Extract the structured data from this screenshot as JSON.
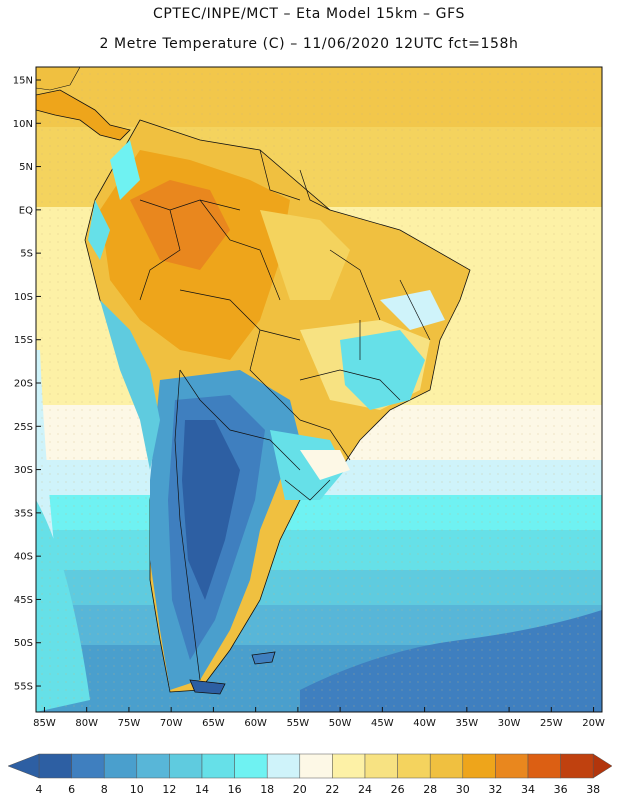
{
  "header": {
    "line1": "CPTEC/INPE/MCT –  Eta Model 15km – GFS",
    "line2": "2 Metre Temperature (C) – 11/06/2020 12UTC fct=158h"
  },
  "axes": {
    "lat_labels": [
      "15N",
      "10N",
      "5N",
      "EQ",
      "5S",
      "10S",
      "15S",
      "20S",
      "25S",
      "30S",
      "35S",
      "40S",
      "45S",
      "50S",
      "55S"
    ],
    "lat_values": [
      15,
      10,
      5,
      0,
      -5,
      -10,
      -15,
      -20,
      -25,
      -30,
      -35,
      -40,
      -45,
      -50,
      -55
    ],
    "lon_labels": [
      "85W",
      "80W",
      "75W",
      "70W",
      "65W",
      "60W",
      "55W",
      "50W",
      "45W",
      "40W",
      "35W",
      "30W",
      "25W",
      "20W"
    ],
    "lon_values": [
      -85,
      -80,
      -75,
      -70,
      -65,
      -60,
      -55,
      -50,
      -45,
      -40,
      -35,
      -30,
      -25,
      -20
    ],
    "lat_range": [
      -58,
      16.5
    ],
    "lon_range": [
      -86,
      -19
    ]
  },
  "colorbar": {
    "labels": [
      "4",
      "6",
      "8",
      "10",
      "12",
      "14",
      "16",
      "18",
      "20",
      "22",
      "24",
      "26",
      "28",
      "30",
      "32",
      "34",
      "36",
      "38"
    ],
    "colors": [
      "#2d5fa3",
      "#3f7fbf",
      "#4a9fcd",
      "#58b6d8",
      "#5fcbdf",
      "#66e0e8",
      "#6ff2f2",
      "#cff3fa",
      "#fdf8e6",
      "#fdf1a6",
      "#f7e282",
      "#f4d35e",
      "#f0c040",
      "#eea51b",
      "#e9871e",
      "#dc5f13",
      "#c0410f"
    ],
    "low_color": "#2d5fa3",
    "high_color": "#b2350c"
  }
}
